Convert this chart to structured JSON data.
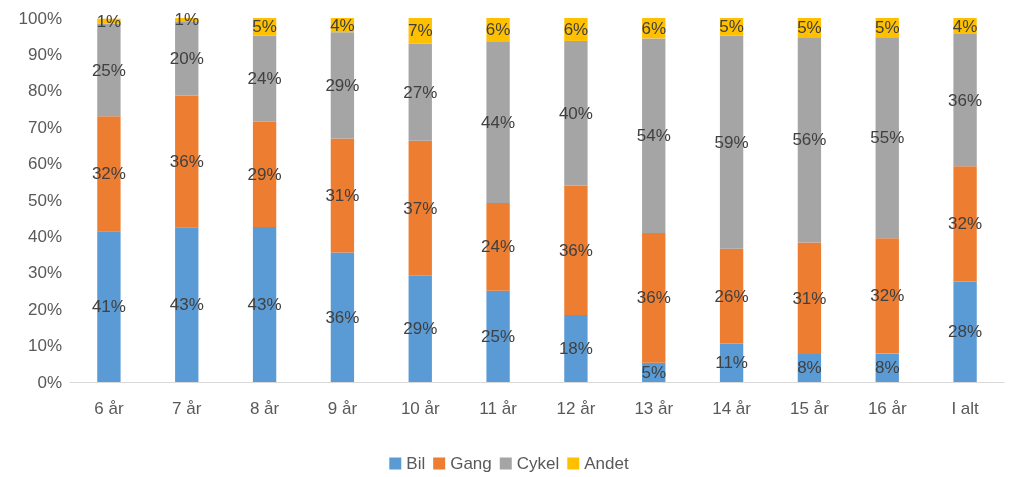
{
  "chart_data": {
    "type": "bar",
    "stacked": true,
    "grid": false,
    "legend": "bottom",
    "categories": [
      "6 år",
      "7 år",
      "8 år",
      "9 år",
      "10 år",
      "11 år",
      "12 år",
      "13 år",
      "14 år",
      "15 år",
      "16 år",
      "I alt"
    ],
    "ylim": [
      0,
      100
    ],
    "yticks": [
      {
        "value": 0,
        "label": "0%"
      },
      {
        "value": 10,
        "label": "10%"
      },
      {
        "value": 20,
        "label": "20%"
      },
      {
        "value": 30,
        "label": "30%"
      },
      {
        "value": 40,
        "label": "40%"
      },
      {
        "value": 50,
        "label": "50%"
      },
      {
        "value": 60,
        "label": "60%"
      },
      {
        "value": 70,
        "label": "70%"
      },
      {
        "value": 80,
        "label": "80%"
      },
      {
        "value": 90,
        "label": "90%"
      },
      {
        "value": 100,
        "label": "100%"
      }
    ],
    "series": [
      {
        "name": "Bil",
        "color": "#5b9bd5",
        "values": [
          41.4,
          42.5,
          42.6,
          35.6,
          29.2,
          25.1,
          18.4,
          5.3,
          10.6,
          7.7,
          7.8,
          27.6
        ],
        "value_labels": [
          "41%",
          "43%",
          "43%",
          "36%",
          "29%",
          "25%",
          "18%",
          "5%",
          "11%",
          "8%",
          "8%",
          "28%"
        ]
      },
      {
        "name": "Gang",
        "color": "#ed7d31",
        "values": [
          31.6,
          36.2,
          28.9,
          31.3,
          37.1,
          24.1,
          35.6,
          35.6,
          26.0,
          30.6,
          31.7,
          31.7
        ],
        "value_labels": [
          "32%",
          "36%",
          "29%",
          "31%",
          "37%",
          "24%",
          "36%",
          "36%",
          "26%",
          "31%",
          "32%",
          "32%"
        ]
      },
      {
        "name": "Cykel",
        "color": "#a5a5a5",
        "values": [
          25.4,
          20.4,
          23.7,
          29.2,
          26.7,
          44.4,
          39.7,
          53.5,
          58.6,
          56.4,
          55.2,
          36.3
        ],
        "value_labels": [
          "25%",
          "20%",
          "24%",
          "29%",
          "27%",
          "44%",
          "40%",
          "54%",
          "59%",
          "56%",
          "55%",
          "36%"
        ]
      },
      {
        "name": "Andet",
        "color": "#ffc000",
        "values": [
          1.4,
          0.9,
          4.8,
          3.9,
          7.0,
          6.4,
          6.3,
          5.6,
          4.8,
          5.3,
          5.3,
          4.4
        ],
        "value_labels": [
          "1%",
          "1%",
          "5%",
          "4%",
          "7%",
          "6%",
          "6%",
          "6%",
          "5%",
          "5%",
          "5%",
          "4%"
        ]
      }
    ]
  }
}
